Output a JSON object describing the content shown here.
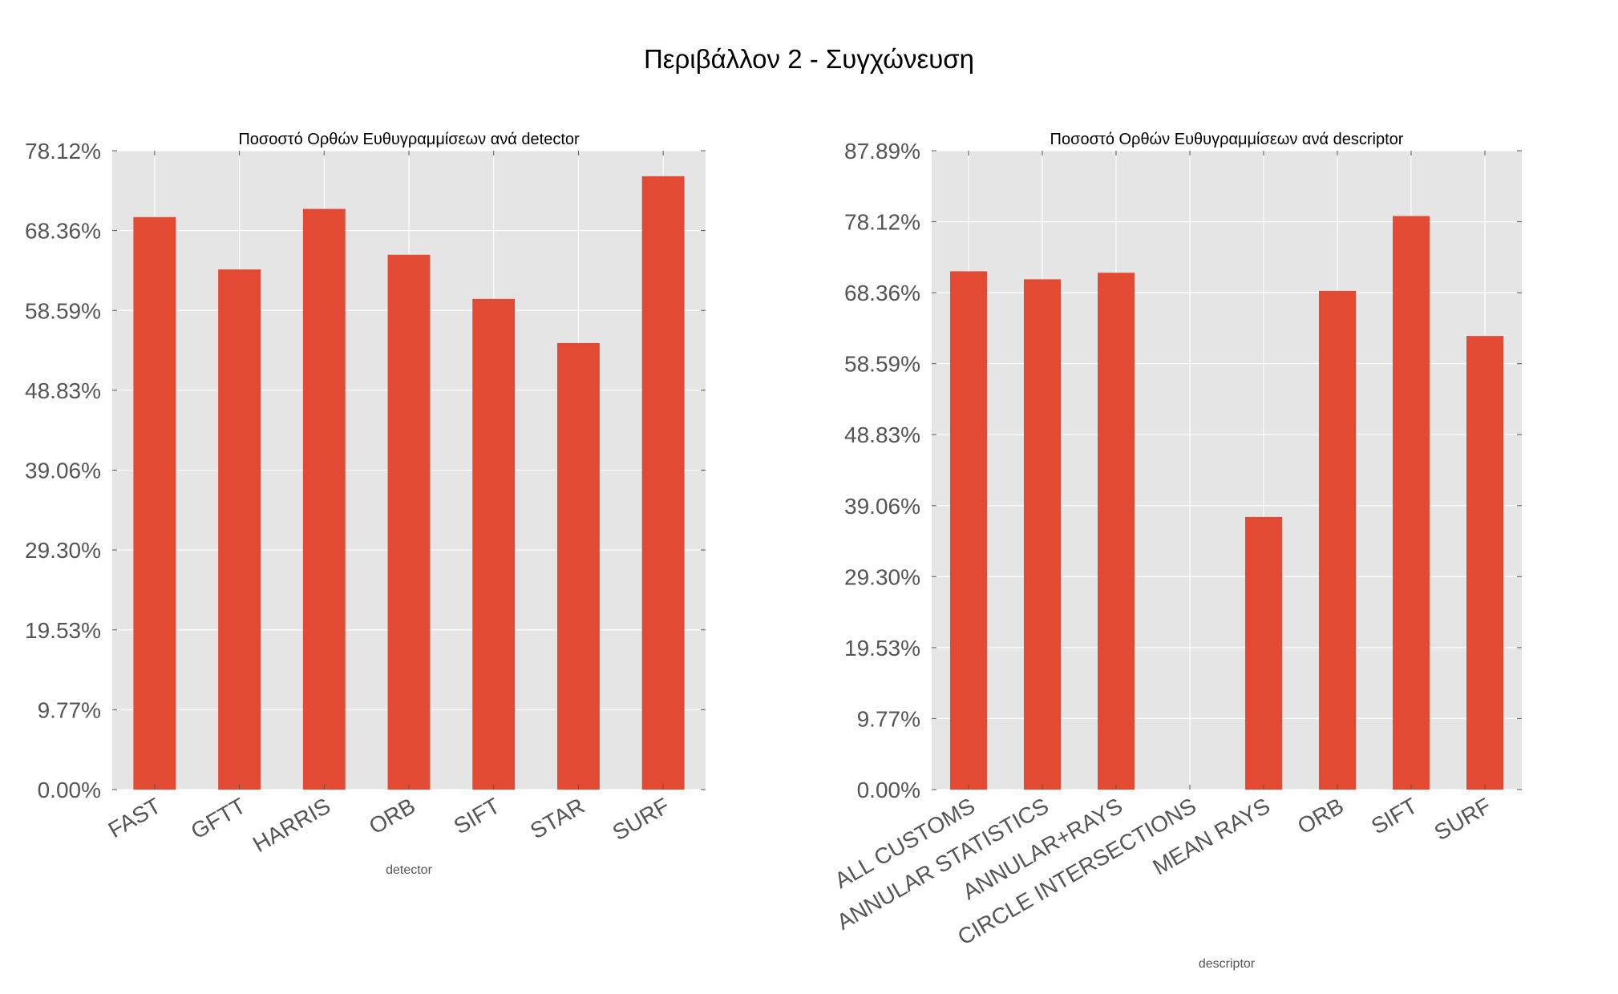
{
  "figure": {
    "title": "Περιβάλλον 2 - Συγχώνευση"
  },
  "colors": {
    "bar": "#E24A33",
    "panel": "#E5E5E5",
    "grid": "#FFFFFF",
    "text": "#555555"
  },
  "chart_data": [
    {
      "type": "bar",
      "title": "Ποσοστό Ορθών Ευθυγραμμίσεων ανά detector",
      "xlabel": "detector",
      "ylabel": "",
      "categories": [
        "FAST",
        "GFTT",
        "HARRIS",
        "ORB",
        "SIFT",
        "STAR",
        "SURF"
      ],
      "values": [
        70.0,
        63.6,
        71.0,
        65.4,
        60.0,
        54.6,
        75.0
      ],
      "ylim": [
        0,
        78.12
      ],
      "yticks": [
        0,
        9.77,
        19.53,
        29.3,
        39.06,
        48.83,
        58.59,
        68.36,
        78.12
      ],
      "ytick_labels": [
        "0.00%",
        "9.77%",
        "19.53%",
        "29.30%",
        "39.06%",
        "48.83%",
        "58.59%",
        "68.36%",
        "78.12%"
      ],
      "grid": true
    },
    {
      "type": "bar",
      "title": "Ποσοστό Ορθών Ευθυγραμμίσεων ανά descriptor",
      "xlabel": "descriptor",
      "ylabel": "",
      "categories": [
        "ALL CUSTOMS",
        "ANNULAR STATISTICS",
        "ANNULAR+RAYS",
        "CIRCLE INTERSECTIONS",
        "MEAN RAYS",
        "ORB",
        "SIFT",
        "SURF"
      ],
      "values": [
        71.3,
        70.2,
        71.1,
        0.0,
        37.5,
        68.6,
        78.9,
        62.4
      ],
      "ylim": [
        0,
        87.89
      ],
      "yticks": [
        0,
        9.77,
        19.53,
        29.3,
        39.06,
        48.83,
        58.59,
        68.36,
        78.12,
        87.89
      ],
      "ytick_labels": [
        "0.00%",
        "9.77%",
        "19.53%",
        "29.30%",
        "39.06%",
        "48.83%",
        "58.59%",
        "68.36%",
        "78.12%",
        "87.89%"
      ],
      "grid": true
    }
  ]
}
